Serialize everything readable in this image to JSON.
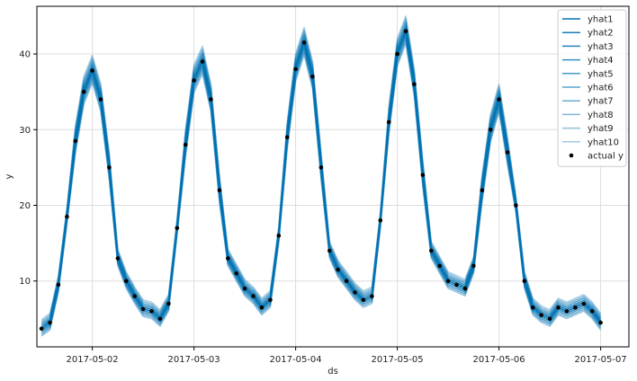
{
  "chart_data": {
    "type": "line",
    "title": "",
    "xlabel": "ds",
    "ylabel": "y",
    "x_tick_labels": [
      "2017-05-02",
      "2017-05-03",
      "2017-05-04",
      "2017-05-05",
      "2017-05-06",
      "2017-05-07"
    ],
    "y_ticks": [
      10,
      20,
      30,
      40
    ],
    "xlim": [
      "2017-05-01 10:55",
      "2017-05-07 06:40"
    ],
    "ylim": [
      1.3,
      46.3
    ],
    "grid": true,
    "legend_position": "top-right",
    "colors": {
      "forecast": "#0072B2",
      "actual": "#000000",
      "grid": "#dddddd"
    },
    "actual": {
      "name": "actual y",
      "x": [
        "2017-05-01 12:00",
        "2017-05-01 14:00",
        "2017-05-01 16:00",
        "2017-05-01 18:00",
        "2017-05-01 20:00",
        "2017-05-01 22:00",
        "2017-05-02 00:00",
        "2017-05-02 02:00",
        "2017-05-02 04:00",
        "2017-05-02 06:00",
        "2017-05-02 08:00",
        "2017-05-02 10:00",
        "2017-05-02 12:00",
        "2017-05-02 14:00",
        "2017-05-02 16:00",
        "2017-05-02 18:00",
        "2017-05-02 20:00",
        "2017-05-02 22:00",
        "2017-05-03 00:00",
        "2017-05-03 02:00",
        "2017-05-03 04:00",
        "2017-05-03 06:00",
        "2017-05-03 08:00",
        "2017-05-03 10:00",
        "2017-05-03 12:00",
        "2017-05-03 14:00",
        "2017-05-03 16:00",
        "2017-05-03 18:00",
        "2017-05-03 20:00",
        "2017-05-03 22:00",
        "2017-05-04 00:00",
        "2017-05-04 02:00",
        "2017-05-04 04:00",
        "2017-05-04 06:00",
        "2017-05-04 08:00",
        "2017-05-04 10:00",
        "2017-05-04 12:00",
        "2017-05-04 14:00",
        "2017-05-04 16:00",
        "2017-05-04 18:00",
        "2017-05-04 20:00",
        "2017-05-04 22:00",
        "2017-05-05 00:00",
        "2017-05-05 02:00",
        "2017-05-05 04:00",
        "2017-05-05 06:00",
        "2017-05-05 08:00",
        "2017-05-05 10:00",
        "2017-05-05 12:00",
        "2017-05-05 14:00",
        "2017-05-05 16:00",
        "2017-05-05 18:00",
        "2017-05-05 20:00",
        "2017-05-05 22:00",
        "2017-05-06 00:00",
        "2017-05-06 02:00",
        "2017-05-06 04:00",
        "2017-05-06 06:00",
        "2017-05-06 08:00",
        "2017-05-06 10:00",
        "2017-05-06 12:00",
        "2017-05-06 14:00",
        "2017-05-06 16:00",
        "2017-05-06 18:00",
        "2017-05-06 20:00",
        "2017-05-06 22:00",
        "2017-05-07 00:00"
      ],
      "y": [
        3.7,
        4.5,
        9.5,
        18.5,
        28.5,
        35.0,
        37.8,
        34.0,
        25.0,
        13.0,
        10.0,
        8.0,
        6.3,
        6.0,
        5.0,
        7.0,
        17.0,
        28.0,
        36.5,
        39.0,
        34.0,
        22.0,
        13.0,
        11.0,
        9.0,
        8.0,
        6.5,
        7.5,
        16.0,
        29.0,
        38.0,
        41.5,
        37.0,
        25.0,
        14.0,
        11.5,
        10.0,
        8.5,
        7.5,
        8.0,
        18.0,
        31.0,
        40.0,
        43.0,
        36.0,
        24.0,
        14.0,
        12.0,
        10.0,
        9.5,
        9.0,
        12.0,
        22.0,
        30.0,
        34.0,
        27.0,
        20.0,
        10.0,
        6.5,
        5.5,
        5.0,
        6.5,
        6.0,
        6.5,
        7.0,
        6.0,
        4.5
      ]
    },
    "forecast": {
      "series": [
        {
          "name": "yhat1",
          "offset": 0.0
        },
        {
          "name": "yhat2",
          "offset": 0.4
        },
        {
          "name": "yhat3",
          "offset": -0.4
        },
        {
          "name": "yhat4",
          "offset": 0.8
        },
        {
          "name": "yhat5",
          "offset": -0.8
        },
        {
          "name": "yhat6",
          "offset": 1.2
        },
        {
          "name": "yhat7",
          "offset": -1.2
        },
        {
          "name": "yhat8",
          "offset": 1.6
        },
        {
          "name": "yhat9",
          "offset": -1.6
        },
        {
          "name": "yhat10",
          "offset": 2.0
        }
      ]
    }
  }
}
